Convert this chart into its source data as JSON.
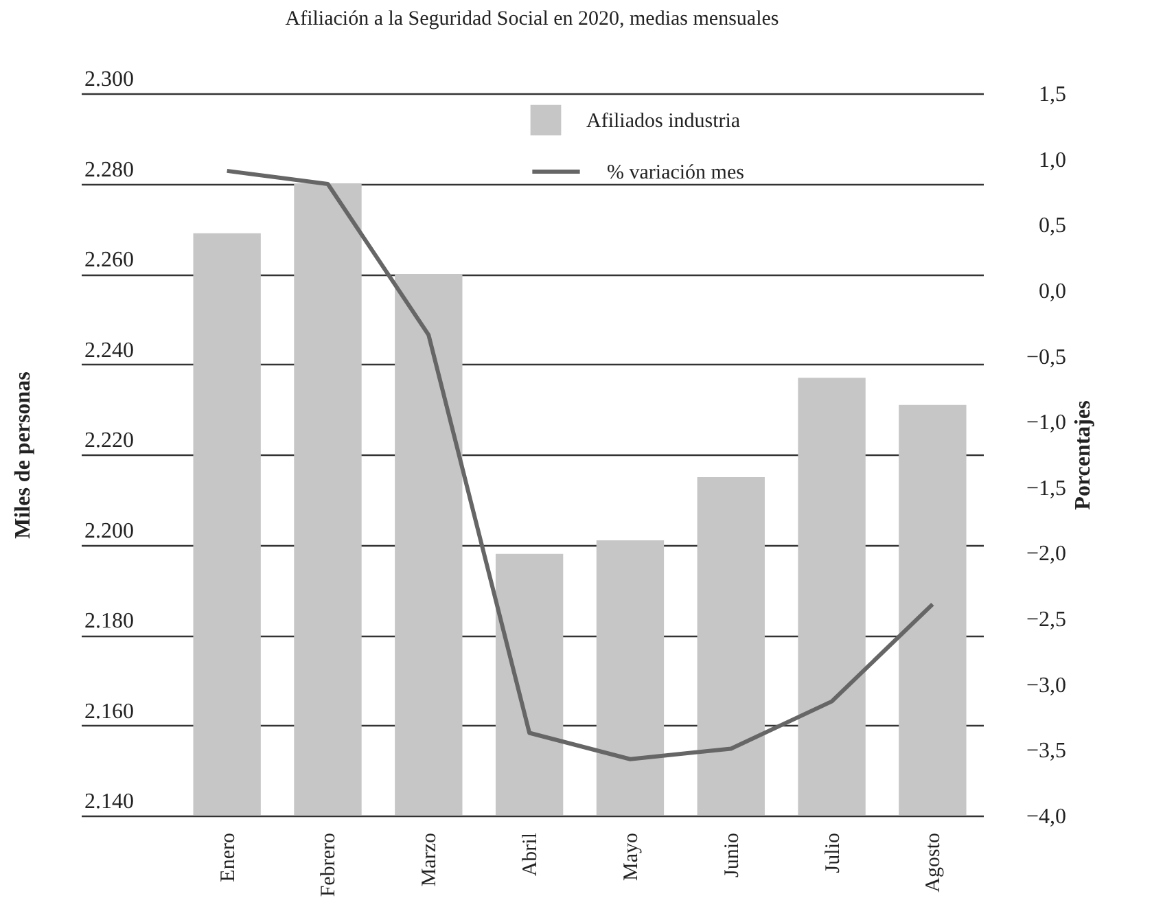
{
  "chart_data": {
    "type": "bar",
    "title": "Afiliación a la Seguridad Social en 2020, medias mensuales",
    "ylabel": "Miles de personas",
    "y2label": "Porcentajes",
    "categories": [
      "Enero",
      "Febrero",
      "Marzo",
      "Abril",
      "Mayo",
      "Junio",
      "Julio",
      "Agosto"
    ],
    "series": [
      {
        "name": "Afiliados industria",
        "color": "#c6c6c6",
        "values": [
          2269,
          2280,
          2260,
          2198,
          2201,
          2215,
          2237,
          2231
        ]
      },
      {
        "name": "% variación mes",
        "type": "line",
        "axis": "y2",
        "color": "#666666",
        "values": [
          0.91,
          0.81,
          -0.34,
          -3.37,
          -3.57,
          -3.49,
          -3.13,
          -2.39
        ]
      }
    ],
    "ylim": [
      2140,
      2300
    ],
    "yticks": [
      {
        "value": 2140,
        "label": "2.140"
      },
      {
        "value": 2160,
        "label": "2.160"
      },
      {
        "value": 2180,
        "label": "2.180"
      },
      {
        "value": 2200,
        "label": "2.200"
      },
      {
        "value": 2220,
        "label": "2.220"
      },
      {
        "value": 2240,
        "label": "2.240"
      },
      {
        "value": 2260,
        "label": "2.260"
      },
      {
        "value": 2280,
        "label": "2.280"
      },
      {
        "value": 2300,
        "label": "2.300"
      }
    ],
    "y2lim": [
      -4,
      1.5
    ],
    "y2ticks": [
      {
        "value": -4,
        "label": "−4,0"
      },
      {
        "value": -3.5,
        "label": "−3,5"
      },
      {
        "value": -3,
        "label": "−3,0"
      },
      {
        "value": -2.5,
        "label": "−2,5"
      },
      {
        "value": -2,
        "label": "−2,0"
      },
      {
        "value": -1.5,
        "label": "−1,5"
      },
      {
        "value": -1,
        "label": "−1,0"
      },
      {
        "value": -0.5,
        "label": "−0,5"
      },
      {
        "value": 0,
        "label": "0,0"
      },
      {
        "value": 0.5,
        "label": "0,5"
      },
      {
        "value": 1,
        "label": "1,0"
      },
      {
        "value": 1.5,
        "label": "1,5"
      }
    ],
    "grid": "y",
    "legend": "top right"
  }
}
